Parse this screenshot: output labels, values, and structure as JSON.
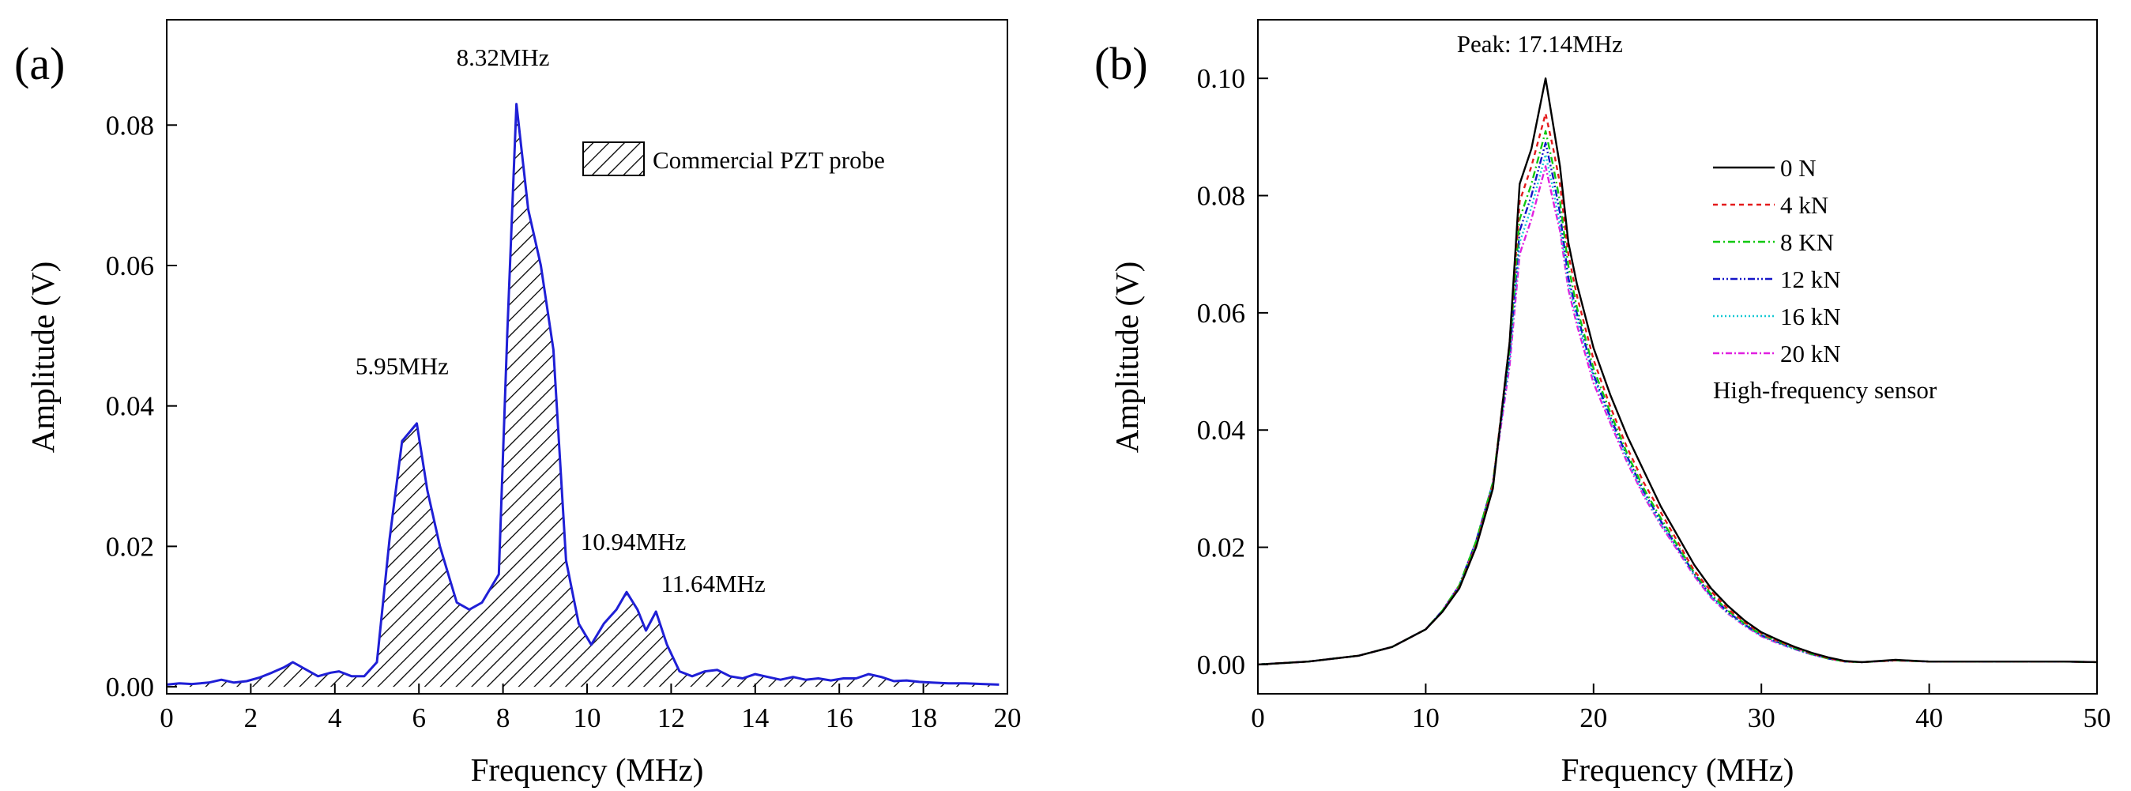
{
  "chart_data": [
    {
      "type": "area",
      "panel_label": "(a)",
      "title": "",
      "xlabel": "Frequency (MHz)",
      "ylabel": "Amplitude (V)",
      "xlim": [
        0,
        20
      ],
      "ylim": [
        -0.001,
        0.095
      ],
      "xticks": [
        "0",
        "2",
        "4",
        "6",
        "8",
        "10",
        "12",
        "14",
        "16",
        "18",
        "20"
      ],
      "yticks": [
        "0.00",
        "0.02",
        "0.04",
        "0.06",
        "0.08"
      ],
      "grid": false,
      "legend": {
        "position": "top-right",
        "entries": [
          "Commercial PZT probe"
        ]
      },
      "series": [
        {
          "name": "Commercial PZT probe",
          "color": "#1f1fd6",
          "fill_pattern": "hatch",
          "x": [
            0,
            0.3,
            0.6,
            1.0,
            1.3,
            1.6,
            1.9,
            2.2,
            2.5,
            2.8,
            3.0,
            3.3,
            3.6,
            3.9,
            4.1,
            4.4,
            4.7,
            5.0,
            5.3,
            5.6,
            5.95,
            6.2,
            6.5,
            6.9,
            7.2,
            7.5,
            7.9,
            8.1,
            8.32,
            8.6,
            8.9,
            9.2,
            9.5,
            9.8,
            10.1,
            10.4,
            10.7,
            10.94,
            11.2,
            11.4,
            11.64,
            11.9,
            12.2,
            12.5,
            12.8,
            13.1,
            13.4,
            13.7,
            14.0,
            14.3,
            14.6,
            14.9,
            15.2,
            15.5,
            15.8,
            16.1,
            16.4,
            16.7,
            17.0,
            17.3,
            17.6,
            17.9,
            18.2,
            18.6,
            19.0,
            19.4,
            19.8
          ],
          "values": [
            0.0003,
            0.0005,
            0.0004,
            0.0006,
            0.001,
            0.0006,
            0.0008,
            0.0013,
            0.002,
            0.0028,
            0.0035,
            0.0025,
            0.0015,
            0.002,
            0.0022,
            0.0015,
            0.0015,
            0.0035,
            0.021,
            0.035,
            0.0375,
            0.028,
            0.02,
            0.012,
            0.011,
            0.012,
            0.016,
            0.05,
            0.083,
            0.068,
            0.06,
            0.048,
            0.018,
            0.009,
            0.006,
            0.009,
            0.011,
            0.0135,
            0.011,
            0.008,
            0.0107,
            0.006,
            0.0022,
            0.0015,
            0.0022,
            0.0024,
            0.0015,
            0.0012,
            0.0018,
            0.0014,
            0.001,
            0.0014,
            0.001,
            0.0012,
            0.0009,
            0.0012,
            0.0012,
            0.0018,
            0.0014,
            0.0008,
            0.0009,
            0.0007,
            0.0006,
            0.0005,
            0.0005,
            0.0004,
            0.0003
          ]
        }
      ],
      "annotations": [
        {
          "text": "5.95MHz",
          "x": 5.6,
          "y": 0.0445
        },
        {
          "text": "8.32MHz",
          "x": 8.0,
          "y": 0.0885
        },
        {
          "text": "10.94MHz",
          "x": 11.1,
          "y": 0.0195
        },
        {
          "text": "11.64MHz",
          "x": 13.0,
          "y": 0.0135
        }
      ]
    },
    {
      "type": "line",
      "panel_label": "(b)",
      "title": "",
      "xlabel": "Frequency (MHz)",
      "ylabel": "Amplitude (V)",
      "xlim": [
        0,
        50
      ],
      "ylim": [
        -0.005,
        0.11
      ],
      "xticks": [
        "0",
        "10",
        "20",
        "30",
        "40",
        "50"
      ],
      "yticks": [
        "0.00",
        "0.02",
        "0.04",
        "0.06",
        "0.08",
        "0.10"
      ],
      "grid": false,
      "legend": {
        "position": "center-right",
        "title": "High-frequency sensor",
        "entries": [
          "0 N",
          "4 kN",
          "8 KN",
          "12 kN",
          "16 kN",
          "20 kN"
        ]
      },
      "x": [
        0,
        3,
        6,
        8,
        10,
        11,
        12,
        13,
        14,
        15,
        15.6,
        16.3,
        17.14,
        17.6,
        18,
        18.5,
        19,
        20,
        21,
        22,
        23,
        24,
        25,
        26,
        27,
        28,
        29,
        30,
        31,
        32,
        33,
        34,
        35,
        36,
        38,
        40,
        42,
        44,
        46,
        48,
        50
      ],
      "series": [
        {
          "name": "0 N",
          "color": "#000000",
          "dash": "",
          "values": [
            0.0,
            0.0005,
            0.0015,
            0.003,
            0.006,
            0.009,
            0.013,
            0.02,
            0.03,
            0.055,
            0.082,
            0.088,
            0.1,
            0.092,
            0.085,
            0.072,
            0.065,
            0.054,
            0.046,
            0.039,
            0.033,
            0.027,
            0.022,
            0.017,
            0.013,
            0.01,
            0.0075,
            0.0055,
            0.0042,
            0.003,
            0.002,
            0.0012,
            0.0006,
            0.0004,
            0.0008,
            0.0005,
            0.0005,
            0.0005,
            0.0005,
            0.0005,
            0.0004
          ]
        },
        {
          "name": "4 kN",
          "color": "#e41a1c",
          "dash": "6,5",
          "values": [
            0.0,
            0.0005,
            0.0015,
            0.003,
            0.006,
            0.009,
            0.0132,
            0.0203,
            0.0305,
            0.055,
            0.079,
            0.085,
            0.094,
            0.088,
            0.082,
            0.07,
            0.063,
            0.052,
            0.044,
            0.037,
            0.031,
            0.026,
            0.021,
            0.016,
            0.0125,
            0.0095,
            0.0072,
            0.0053,
            0.004,
            0.0029,
            0.0019,
            0.0011,
            0.0005,
            0.0004,
            0.0007,
            0.0005,
            0.0005,
            0.0005,
            0.0005,
            0.0005,
            0.0004
          ]
        },
        {
          "name": "8 KN",
          "color": "#11c811",
          "dash": "9,4,2,4",
          "values": [
            0.0,
            0.0005,
            0.0015,
            0.003,
            0.006,
            0.0092,
            0.0135,
            0.021,
            0.031,
            0.054,
            0.076,
            0.082,
            0.091,
            0.085,
            0.079,
            0.068,
            0.061,
            0.0505,
            0.043,
            0.036,
            0.03,
            0.025,
            0.0203,
            0.0157,
            0.012,
            0.0092,
            0.007,
            0.0051,
            0.0039,
            0.0028,
            0.0018,
            0.001,
            0.0005,
            0.0004,
            0.0007,
            0.0005,
            0.0005,
            0.0005,
            0.0005,
            0.0005,
            0.0004
          ]
        },
        {
          "name": "12 kN",
          "color": "#1515c8",
          "dash": "9,3,2,3,2,3",
          "values": [
            0.0,
            0.0005,
            0.0015,
            0.003,
            0.006,
            0.0092,
            0.0135,
            0.021,
            0.031,
            0.053,
            0.074,
            0.08,
            0.089,
            0.083,
            0.077,
            0.066,
            0.06,
            0.0495,
            0.0422,
            0.0355,
            0.0295,
            0.0245,
            0.02,
            0.0155,
            0.0118,
            0.009,
            0.0068,
            0.005,
            0.0038,
            0.0027,
            0.0018,
            0.001,
            0.0005,
            0.0004,
            0.0007,
            0.0005,
            0.0005,
            0.0005,
            0.0005,
            0.0005,
            0.0004
          ]
        },
        {
          "name": "16 kN",
          "color": "#14c8d4",
          "dash": "2,3",
          "values": [
            0.0,
            0.0005,
            0.0015,
            0.003,
            0.006,
            0.0092,
            0.0135,
            0.021,
            0.031,
            0.052,
            0.072,
            0.078,
            0.087,
            0.081,
            0.075,
            0.065,
            0.059,
            0.049,
            0.0418,
            0.035,
            0.029,
            0.024,
            0.0198,
            0.0153,
            0.0116,
            0.0088,
            0.0067,
            0.0049,
            0.0037,
            0.0026,
            0.0017,
            0.001,
            0.0005,
            0.0004,
            0.0007,
            0.0005,
            0.0005,
            0.0005,
            0.0005,
            0.0005,
            0.0004
          ]
        },
        {
          "name": "20 kN",
          "color": "#e020e0",
          "dash": "8,3,2,3",
          "values": [
            0.0,
            0.0005,
            0.0015,
            0.003,
            0.006,
            0.0092,
            0.0135,
            0.021,
            0.031,
            0.051,
            0.07,
            0.076,
            0.085,
            0.079,
            0.074,
            0.064,
            0.058,
            0.048,
            0.0412,
            0.0345,
            0.0287,
            0.0238,
            0.0195,
            0.0151,
            0.0114,
            0.0087,
            0.0066,
            0.0048,
            0.0036,
            0.0026,
            0.0017,
            0.001,
            0.0005,
            0.0004,
            0.0007,
            0.0005,
            0.0005,
            0.0005,
            0.0005,
            0.0005,
            0.0004
          ]
        }
      ],
      "annotations": [
        {
          "text": "Peak: 17.14MHz",
          "x": 16.8,
          "y": 0.1045
        }
      ]
    }
  ]
}
